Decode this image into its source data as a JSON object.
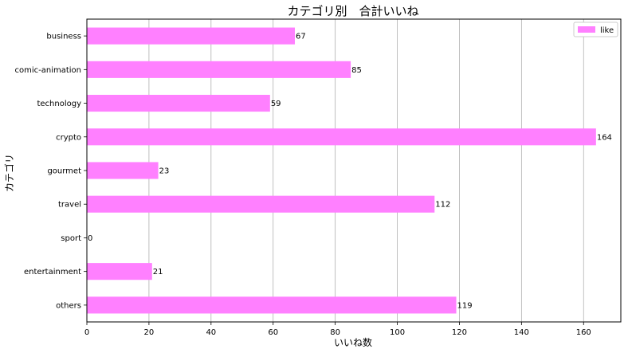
{
  "chart_data": {
    "type": "bar",
    "orientation": "horizontal",
    "title": "カテゴリ別　合計いいね",
    "xlabel": "いいね数",
    "ylabel": "カテゴリ",
    "categories": [
      "business",
      "comic-animation",
      "technology",
      "crypto",
      "gourmet",
      "travel",
      "sport",
      "entertainment",
      "others"
    ],
    "series": [
      {
        "name": "like",
        "values": [
          67,
          85,
          59,
          164,
          23,
          112,
          0,
          21,
          119
        ],
        "color": "#ff80ff"
      }
    ],
    "xlim": [
      0,
      172
    ],
    "xticks": [
      0,
      20,
      40,
      60,
      80,
      100,
      120,
      140,
      160
    ],
    "grid": "vertical",
    "legend": "top-right"
  }
}
